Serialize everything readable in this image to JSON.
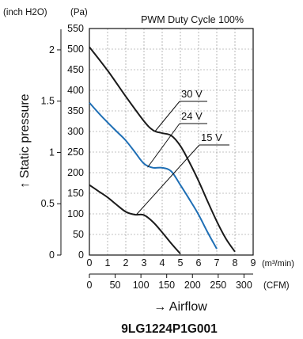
{
  "chart_data": {
    "type": "line",
    "title": "PWM Duty Cycle 100%",
    "model": "9LG1224P1G001",
    "xlabel": "→ Airflow",
    "ylabel": "↑ Static pressure",
    "y_unit_pa": "(Pa)",
    "y_unit_inch": "(inch H2O)",
    "x_unit_m3": "(m³/min)",
    "x_unit_cfm": "(CFM)",
    "xlim": [
      0,
      9
    ],
    "ylim": [
      0,
      550
    ],
    "grid": true,
    "x_ticks_m3": [
      "0",
      "1",
      "2",
      "3",
      "4",
      "5",
      "6",
      "7",
      "8",
      "9"
    ],
    "x_ticks_cfm": [
      "0",
      "50",
      "100",
      "150",
      "200",
      "250",
      "300"
    ],
    "y_ticks_pa": [
      "0",
      "50",
      "100",
      "150",
      "200",
      "250",
      "300",
      "350",
      "400",
      "450",
      "500",
      "550"
    ],
    "y_ticks_inch": [
      "0",
      "0.5",
      "1",
      "1.5",
      "2"
    ],
    "series": [
      {
        "name": "30 V",
        "color": "#1a1a1a",
        "points": [
          [
            0,
            505
          ],
          [
            1,
            448
          ],
          [
            2,
            385
          ],
          [
            3,
            325
          ],
          [
            3.5,
            303
          ],
          [
            4,
            296
          ],
          [
            4.5,
            290
          ],
          [
            5,
            265
          ],
          [
            5.5,
            225
          ],
          [
            6,
            180
          ],
          [
            6.5,
            130
          ],
          [
            7,
            82
          ],
          [
            7.5,
            40
          ],
          [
            8,
            8
          ]
        ]
      },
      {
        "name": "24 V",
        "color": "#1f6fb5",
        "points": [
          [
            0,
            370
          ],
          [
            0.5,
            345
          ],
          [
            1,
            322
          ],
          [
            1.5,
            300
          ],
          [
            2,
            278
          ],
          [
            2.5,
            250
          ],
          [
            3,
            222
          ],
          [
            3.5,
            212
          ],
          [
            4,
            212
          ],
          [
            4.5,
            203
          ],
          [
            5,
            170
          ],
          [
            5.5,
            135
          ],
          [
            6,
            98
          ],
          [
            6.5,
            55
          ],
          [
            7,
            15
          ]
        ]
      },
      {
        "name": "15 V",
        "color": "#1a1a1a",
        "points": [
          [
            0,
            170
          ],
          [
            0.5,
            155
          ],
          [
            1,
            140
          ],
          [
            1.5,
            122
          ],
          [
            2,
            105
          ],
          [
            2.5,
            98
          ],
          [
            3,
            97
          ],
          [
            3.5,
            80
          ],
          [
            4,
            55
          ],
          [
            4.5,
            28
          ],
          [
            5,
            3
          ]
        ]
      }
    ]
  }
}
